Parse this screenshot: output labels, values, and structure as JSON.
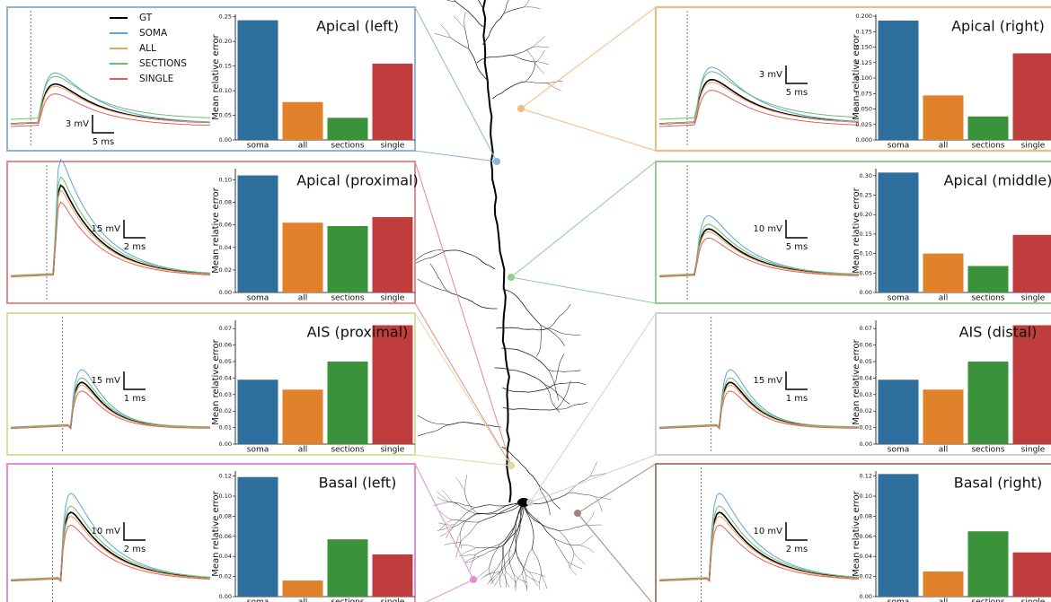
{
  "traces": {
    "series": [
      {
        "name": "GT",
        "color": "#000000"
      },
      {
        "name": "SOMA",
        "color": "#5aa7d8"
      },
      {
        "name": "ALL",
        "color": "#f0a060"
      },
      {
        "name": "SECTIONS",
        "color": "#6abf6a"
      },
      {
        "name": "SINGLE",
        "color": "#e06060"
      }
    ]
  },
  "bar_colors": [
    "#2e6f9e",
    "#e1812c",
    "#3a923a",
    "#c03d3e"
  ],
  "chart_data": [
    {
      "type": "bar",
      "title": "Apical (left)",
      "ylabel": "Mean relative error",
      "color": "#8fb3d9",
      "scale_bar": [
        "3 mV",
        "5 ms"
      ],
      "categories": [
        "soma",
        "all",
        "sections",
        "single"
      ],
      "values": [
        0.243,
        0.077,
        0.045,
        0.155
      ],
      "ylim": [
        0,
        0.255
      ],
      "yticks": [
        {
          "value": 0,
          "label": "0.00"
        },
        {
          "value": 0.05,
          "label": "0.05"
        },
        {
          "value": 0.1,
          "label": "0.10"
        },
        {
          "value": 0.15,
          "label": "0.15"
        },
        {
          "value": 0.2,
          "label": "0.20"
        },
        {
          "value": 0.25,
          "label": "0.25"
        }
      ]
    },
    {
      "type": "bar",
      "title": "Apical (right)",
      "ylabel": "Mean relative error",
      "color": "#f5b97f",
      "scale_bar": [
        "3 mV",
        "5 ms"
      ],
      "categories": [
        "soma",
        "all",
        "sections",
        "single"
      ],
      "values": [
        0.193,
        0.072,
        0.038,
        0.14
      ],
      "ylim": [
        0,
        0.203
      ],
      "yticks": [
        {
          "value": 0,
          "label": "0.000"
        },
        {
          "value": 0.025,
          "label": "0.025"
        },
        {
          "value": 0.05,
          "label": "0.050"
        },
        {
          "value": 0.075,
          "label": "0.075"
        },
        {
          "value": 0.1,
          "label": "0.100"
        },
        {
          "value": 0.125,
          "label": "0.125"
        },
        {
          "value": 0.15,
          "label": "0.150"
        },
        {
          "value": 0.175,
          "label": "0.175"
        },
        {
          "value": 0.2,
          "label": "0.200"
        }
      ]
    },
    {
      "type": "bar",
      "title": "Apical (proximal)",
      "ylabel": "Mean relative error",
      "color": "#e58a8a",
      "scale_bar": [
        "15 mV",
        "2 ms"
      ],
      "categories": [
        "soma",
        "all",
        "sections",
        "single"
      ],
      "values": [
        0.104,
        0.062,
        0.059,
        0.067
      ],
      "ylim": [
        0,
        0.11
      ],
      "yticks": [
        {
          "value": 0,
          "label": "0.00"
        },
        {
          "value": 0.02,
          "label": "0.02"
        },
        {
          "value": 0.04,
          "label": "0.04"
        },
        {
          "value": 0.06,
          "label": "0.06"
        },
        {
          "value": 0.08,
          "label": "0.08"
        },
        {
          "value": 0.1,
          "label": "0.10"
        }
      ]
    },
    {
      "type": "bar",
      "title": "Apical (middle)",
      "ylabel": "Mean relative error",
      "color": "#8fcf8f",
      "scale_bar": [
        "10 mV",
        "5 ms"
      ],
      "categories": [
        "soma",
        "all",
        "sections",
        "single"
      ],
      "values": [
        0.308,
        0.1,
        0.068,
        0.148
      ],
      "ylim": [
        0,
        0.318
      ],
      "yticks": [
        {
          "value": 0,
          "label": "0.00"
        },
        {
          "value": 0.05,
          "label": "0.05"
        },
        {
          "value": 0.1,
          "label": "0.10"
        },
        {
          "value": 0.15,
          "label": "0.15"
        },
        {
          "value": 0.2,
          "label": "0.20"
        },
        {
          "value": 0.25,
          "label": "0.25"
        },
        {
          "value": 0.3,
          "label": "0.30"
        }
      ]
    },
    {
      "type": "bar",
      "title": "AIS (proximal)",
      "ylabel": "Mean relative error",
      "color": "#dcdca0",
      "scale_bar": [
        "15 mV",
        "1 ms"
      ],
      "categories": [
        "soma",
        "all",
        "sections",
        "single"
      ],
      "values": [
        0.039,
        0.033,
        0.05,
        0.072
      ],
      "ylim": [
        0,
        0.075
      ],
      "yticks": [
        {
          "value": 0,
          "label": "0.00"
        },
        {
          "value": 0.01,
          "label": "0.01"
        },
        {
          "value": 0.02,
          "label": "0.02"
        },
        {
          "value": 0.03,
          "label": "0.03"
        },
        {
          "value": 0.04,
          "label": "0.04"
        },
        {
          "value": 0.05,
          "label": "0.05"
        },
        {
          "value": 0.06,
          "label": "0.06"
        },
        {
          "value": 0.07,
          "label": "0.07"
        }
      ]
    },
    {
      "type": "bar",
      "title": "AIS (distal)",
      "ylabel": "Mean relative error",
      "color": "#d0d0d0",
      "scale_bar": [
        "15 mV",
        "1 ms"
      ],
      "categories": [
        "soma",
        "all",
        "sections",
        "single"
      ],
      "values": [
        0.039,
        0.033,
        0.05,
        0.072
      ],
      "ylim": [
        0,
        0.075
      ],
      "yticks": [
        {
          "value": 0,
          "label": "0.00"
        },
        {
          "value": 0.01,
          "label": "0.01"
        },
        {
          "value": 0.02,
          "label": "0.02"
        },
        {
          "value": 0.03,
          "label": "0.03"
        },
        {
          "value": 0.04,
          "label": "0.04"
        },
        {
          "value": 0.05,
          "label": "0.05"
        },
        {
          "value": 0.06,
          "label": "0.06"
        },
        {
          "value": 0.07,
          "label": "0.07"
        }
      ]
    },
    {
      "type": "bar",
      "title": "Basal (left)",
      "ylabel": "Mean relative error",
      "color": "#e58fd0",
      "scale_bar": [
        "10 mV",
        "2 ms"
      ],
      "categories": [
        "soma",
        "all",
        "sections",
        "single"
      ],
      "values": [
        0.119,
        0.016,
        0.057,
        0.042
      ],
      "ylim": [
        0,
        0.125
      ],
      "yticks": [
        {
          "value": 0,
          "label": "0.00"
        },
        {
          "value": 0.02,
          "label": "0.02"
        },
        {
          "value": 0.04,
          "label": "0.04"
        },
        {
          "value": 0.06,
          "label": "0.06"
        },
        {
          "value": 0.08,
          "label": "0.08"
        },
        {
          "value": 0.1,
          "label": "0.10"
        },
        {
          "value": 0.12,
          "label": "0.12"
        }
      ]
    },
    {
      "type": "bar",
      "title": "Basal (right)",
      "ylabel": "Mean relative error",
      "color": "#a9827a",
      "scale_bar": [
        "10 mV",
        "2 ms"
      ],
      "categories": [
        "soma",
        "all",
        "sections",
        "single"
      ],
      "values": [
        0.122,
        0.025,
        0.065,
        0.044
      ],
      "ylim": [
        0,
        0.125
      ],
      "yticks": [
        {
          "value": 0,
          "label": "0.00"
        },
        {
          "value": 0.02,
          "label": "0.02"
        },
        {
          "value": 0.04,
          "label": "0.04"
        },
        {
          "value": 0.06,
          "label": "0.06"
        },
        {
          "value": 0.08,
          "label": "0.08"
        },
        {
          "value": 0.1,
          "label": "0.10"
        },
        {
          "value": 0.12,
          "label": "0.12"
        }
      ]
    }
  ]
}
